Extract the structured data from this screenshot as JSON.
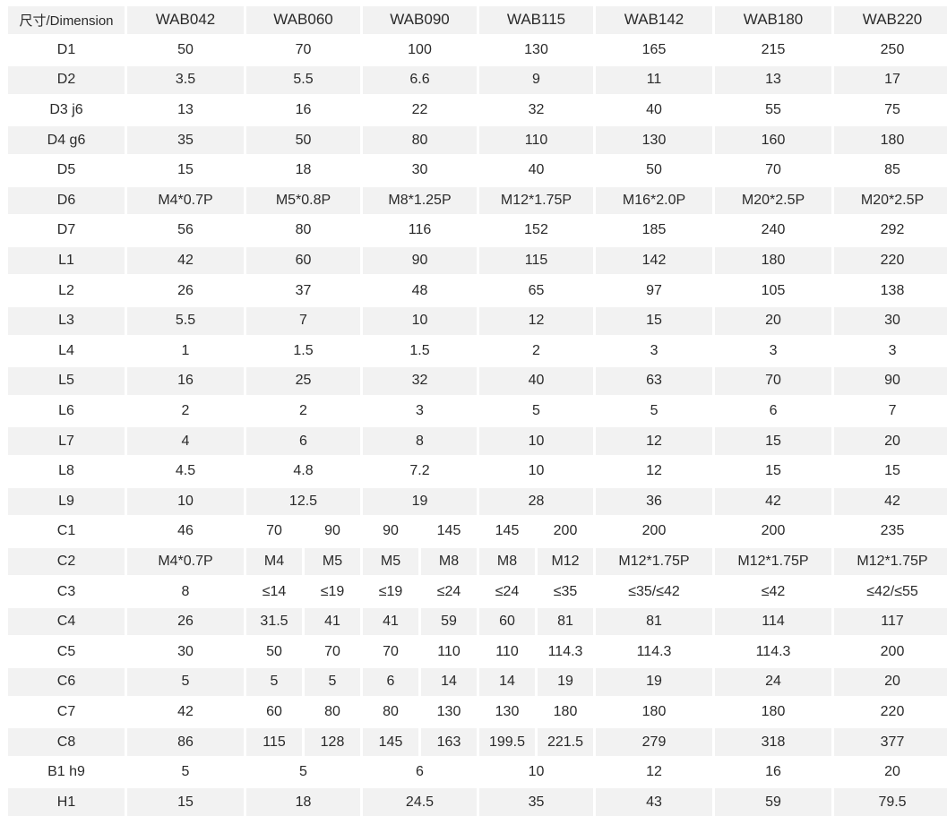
{
  "table": {
    "header": [
      "尺寸/Dimension",
      "WAB042",
      "WAB060",
      "WAB090",
      "WAB115",
      "WAB142",
      "WAB180",
      "WAB220"
    ],
    "rows": [
      {
        "label": "D1",
        "cells": [
          {
            "v": "50"
          },
          {
            "v": "70",
            "span": 2
          },
          {
            "v": "100",
            "span": 2
          },
          {
            "v": "130",
            "span": 2
          },
          {
            "v": "165"
          },
          {
            "v": "215"
          },
          {
            "v": "250"
          }
        ]
      },
      {
        "label": "D2",
        "cells": [
          {
            "v": "3.5"
          },
          {
            "v": "5.5",
            "span": 2
          },
          {
            "v": "6.6",
            "span": 2
          },
          {
            "v": "9",
            "span": 2
          },
          {
            "v": "11"
          },
          {
            "v": "13"
          },
          {
            "v": "17"
          }
        ]
      },
      {
        "label": "D3 j6",
        "cells": [
          {
            "v": "13"
          },
          {
            "v": "16",
            "span": 2
          },
          {
            "v": "22",
            "span": 2
          },
          {
            "v": "32",
            "span": 2
          },
          {
            "v": "40"
          },
          {
            "v": "55"
          },
          {
            "v": "75"
          }
        ]
      },
      {
        "label": "D4 g6",
        "cells": [
          {
            "v": "35"
          },
          {
            "v": "50",
            "span": 2
          },
          {
            "v": "80",
            "span": 2
          },
          {
            "v": "110",
            "span": 2
          },
          {
            "v": "130"
          },
          {
            "v": "160"
          },
          {
            "v": "180"
          }
        ]
      },
      {
        "label": "D5",
        "cells": [
          {
            "v": "15"
          },
          {
            "v": "18",
            "span": 2
          },
          {
            "v": "30",
            "span": 2
          },
          {
            "v": "40",
            "span": 2
          },
          {
            "v": "50"
          },
          {
            "v": "70"
          },
          {
            "v": "85"
          }
        ]
      },
      {
        "label": "D6",
        "cells": [
          {
            "v": "M4*0.7P"
          },
          {
            "v": "M5*0.8P",
            "span": 2
          },
          {
            "v": "M8*1.25P",
            "span": 2
          },
          {
            "v": "M12*1.75P",
            "span": 2
          },
          {
            "v": "M16*2.0P"
          },
          {
            "v": "M20*2.5P"
          },
          {
            "v": "M20*2.5P"
          }
        ]
      },
      {
        "label": "D7",
        "cells": [
          {
            "v": "56"
          },
          {
            "v": "80",
            "span": 2
          },
          {
            "v": "116",
            "span": 2
          },
          {
            "v": "152",
            "span": 2
          },
          {
            "v": "185"
          },
          {
            "v": "240"
          },
          {
            "v": "292"
          }
        ]
      },
      {
        "label": "L1",
        "cells": [
          {
            "v": "42"
          },
          {
            "v": "60",
            "span": 2
          },
          {
            "v": "90",
            "span": 2
          },
          {
            "v": "115",
            "span": 2
          },
          {
            "v": "142"
          },
          {
            "v": "180"
          },
          {
            "v": "220"
          }
        ]
      },
      {
        "label": "L2",
        "cells": [
          {
            "v": "26"
          },
          {
            "v": "37",
            "span": 2
          },
          {
            "v": "48",
            "span": 2
          },
          {
            "v": "65",
            "span": 2
          },
          {
            "v": "97"
          },
          {
            "v": "105"
          },
          {
            "v": "138"
          }
        ]
      },
      {
        "label": "L3",
        "cells": [
          {
            "v": "5.5"
          },
          {
            "v": "7",
            "span": 2
          },
          {
            "v": "10",
            "span": 2
          },
          {
            "v": "12",
            "span": 2
          },
          {
            "v": "15"
          },
          {
            "v": "20"
          },
          {
            "v": "30"
          }
        ]
      },
      {
        "label": "L4",
        "cells": [
          {
            "v": "1"
          },
          {
            "v": "1.5",
            "span": 2
          },
          {
            "v": "1.5",
            "span": 2
          },
          {
            "v": "2",
            "span": 2
          },
          {
            "v": "3"
          },
          {
            "v": "3"
          },
          {
            "v": "3"
          }
        ]
      },
      {
        "label": "L5",
        "cells": [
          {
            "v": "16"
          },
          {
            "v": "25",
            "span": 2
          },
          {
            "v": "32",
            "span": 2
          },
          {
            "v": "40",
            "span": 2
          },
          {
            "v": "63"
          },
          {
            "v": "70"
          },
          {
            "v": "90"
          }
        ]
      },
      {
        "label": "L6",
        "cells": [
          {
            "v": "2"
          },
          {
            "v": "2",
            "span": 2
          },
          {
            "v": "3",
            "span": 2
          },
          {
            "v": "5",
            "span": 2
          },
          {
            "v": "5"
          },
          {
            "v": "6"
          },
          {
            "v": "7"
          }
        ]
      },
      {
        "label": "L7",
        "cells": [
          {
            "v": "4"
          },
          {
            "v": "6",
            "span": 2
          },
          {
            "v": "8",
            "span": 2
          },
          {
            "v": "10",
            "span": 2
          },
          {
            "v": "12"
          },
          {
            "v": "15"
          },
          {
            "v": "20"
          }
        ]
      },
      {
        "label": "L8",
        "cells": [
          {
            "v": "4.5"
          },
          {
            "v": "4.8",
            "span": 2
          },
          {
            "v": "7.2",
            "span": 2
          },
          {
            "v": "10",
            "span": 2
          },
          {
            "v": "12"
          },
          {
            "v": "15"
          },
          {
            "v": "15"
          }
        ]
      },
      {
        "label": "L9",
        "cells": [
          {
            "v": "10"
          },
          {
            "v": "12.5",
            "span": 2
          },
          {
            "v": "19",
            "span": 2
          },
          {
            "v": "28",
            "span": 2
          },
          {
            "v": "36"
          },
          {
            "v": "42"
          },
          {
            "v": "42"
          }
        ]
      },
      {
        "label": "C1",
        "cells": [
          {
            "v": "46"
          },
          {
            "v": "70",
            "b": true
          },
          {
            "v": "90",
            "b": true
          },
          {
            "v": "90",
            "b": true
          },
          {
            "v": "145",
            "b": true
          },
          {
            "v": "145",
            "b": true
          },
          {
            "v": "200",
            "b": true
          },
          {
            "v": "200"
          },
          {
            "v": "200"
          },
          {
            "v": "235"
          }
        ]
      },
      {
        "label": "C2",
        "cells": [
          {
            "v": "M4*0.7P"
          },
          {
            "v": "M4",
            "b": true
          },
          {
            "v": "M5",
            "b": true
          },
          {
            "v": "M5",
            "b": true
          },
          {
            "v": "M8",
            "b": true
          },
          {
            "v": "M8",
            "b": true
          },
          {
            "v": "M12",
            "b": true
          },
          {
            "v": "M12*1.75P"
          },
          {
            "v": "M12*1.75P"
          },
          {
            "v": "M12*1.75P"
          }
        ]
      },
      {
        "label": "C3",
        "cells": [
          {
            "v": "8"
          },
          {
            "v": "≤14",
            "b": true
          },
          {
            "v": "≤19",
            "b": true
          },
          {
            "v": "≤19",
            "b": true
          },
          {
            "v": "≤24",
            "b": true
          },
          {
            "v": "≤24",
            "b": true
          },
          {
            "v": "≤35",
            "b": true
          },
          {
            "v": "≤35/≤42"
          },
          {
            "v": "≤42"
          },
          {
            "v": "≤42/≤55"
          }
        ]
      },
      {
        "label": "C4",
        "cells": [
          {
            "v": "26"
          },
          {
            "v": "31.5",
            "b": true
          },
          {
            "v": "41",
            "b": true
          },
          {
            "v": "41",
            "b": true
          },
          {
            "v": "59",
            "b": true
          },
          {
            "v": "60",
            "b": true
          },
          {
            "v": "81",
            "b": true
          },
          {
            "v": "81"
          },
          {
            "v": "114"
          },
          {
            "v": "117"
          }
        ]
      },
      {
        "label": "C5",
        "cells": [
          {
            "v": "30"
          },
          {
            "v": "50",
            "b": true
          },
          {
            "v": "70",
            "b": true
          },
          {
            "v": "70",
            "b": true
          },
          {
            "v": "110",
            "b": true
          },
          {
            "v": "110",
            "b": true
          },
          {
            "v": "114.3",
            "b": true
          },
          {
            "v": "114.3"
          },
          {
            "v": "114.3"
          },
          {
            "v": "200"
          }
        ]
      },
      {
        "label": "C6",
        "cells": [
          {
            "v": "5",
            "b": true
          },
          {
            "v": "5",
            "b": true
          },
          {
            "v": "5",
            "b": true
          },
          {
            "v": "6",
            "b": true
          },
          {
            "v": "14",
            "b": true
          },
          {
            "v": "14",
            "b": true
          },
          {
            "v": "19",
            "b": true
          },
          {
            "v": "19"
          },
          {
            "v": "24"
          },
          {
            "v": "20"
          }
        ]
      },
      {
        "label": "C7",
        "cells": [
          {
            "v": "42"
          },
          {
            "v": "60"
          },
          {
            "v": "80"
          },
          {
            "v": "80"
          },
          {
            "v": "130"
          },
          {
            "v": "130"
          },
          {
            "v": "180"
          },
          {
            "v": "180"
          },
          {
            "v": "180"
          },
          {
            "v": "220"
          }
        ]
      },
      {
        "label": "C8",
        "cells": [
          {
            "v": "86"
          },
          {
            "v": "115",
            "b": true
          },
          {
            "v": "128",
            "b": true
          },
          {
            "v": "145",
            "b": true
          },
          {
            "v": "163",
            "b": true
          },
          {
            "v": "199.5",
            "b": true
          },
          {
            "v": "221.5",
            "b": true
          },
          {
            "v": "279"
          },
          {
            "v": "318"
          },
          {
            "v": "377"
          }
        ]
      },
      {
        "label": "B1 h9",
        "cells": [
          {
            "v": "5"
          },
          {
            "v": "5",
            "span": 2
          },
          {
            "v": "6",
            "span": 2
          },
          {
            "v": "10",
            "span": 2
          },
          {
            "v": "12"
          },
          {
            "v": "16"
          },
          {
            "v": "20"
          }
        ]
      },
      {
        "label": "H1",
        "cells": [
          {
            "v": "15"
          },
          {
            "v": "18",
            "span": 2
          },
          {
            "v": "24.5",
            "span": 2
          },
          {
            "v": "35",
            "span": 2
          },
          {
            "v": "43"
          },
          {
            "v": "59"
          },
          {
            "v": "79.5"
          }
        ]
      }
    ]
  }
}
